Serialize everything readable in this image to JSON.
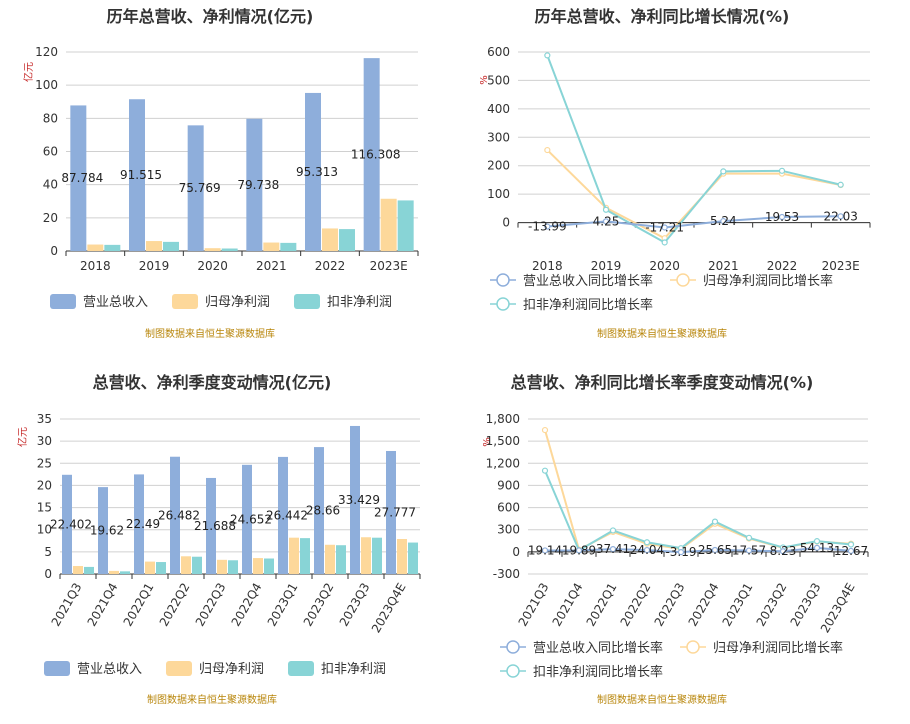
{
  "colors": {
    "revenue": "#8eaedb",
    "net_profit": "#fdd89a",
    "deducted_profit": "#88d4d6"
  },
  "source_text": "制图数据来自恒生聚源数据库",
  "chart_data": [
    {
      "id": "annual-amount",
      "type": "bar",
      "title": "历年总营收、净利情况(亿元)",
      "ylabel": "亿元",
      "ylim": [
        0,
        120
      ],
      "yticks": [
        0,
        20,
        40,
        60,
        80,
        100,
        120
      ],
      "categories": [
        "2018",
        "2019",
        "2020",
        "2021",
        "2022",
        "2023E"
      ],
      "series": [
        {
          "name": "营业总收入",
          "values": [
            87.784,
            91.515,
            75.769,
            79.738,
            95.313,
            116.308
          ],
          "labels": [
            "87.784",
            "91.515",
            "75.769",
            "79.738",
            "95.313",
            "116.308"
          ]
        },
        {
          "name": "归母净利润",
          "values": [
            3.9,
            6.0,
            1.7,
            5.1,
            13.6,
            31.5
          ]
        },
        {
          "name": "扣非净利润",
          "values": [
            3.7,
            5.5,
            1.5,
            4.9,
            13.2,
            30.5
          ]
        }
      ],
      "legend": "bottom"
    },
    {
      "id": "annual-growth",
      "type": "line",
      "title": "历年总营收、净利同比增长情况(%)",
      "ylabel": "%",
      "ylim": [
        -100,
        600
      ],
      "yticks": [
        0,
        100,
        200,
        300,
        400,
        500,
        600
      ],
      "categories": [
        "2018",
        "2019",
        "2020",
        "2021",
        "2022",
        "2023E"
      ],
      "series": [
        {
          "name": "营业总收入同比增长率",
          "values": [
            -13.99,
            4.25,
            -17.21,
            5.24,
            19.53,
            22.03
          ],
          "labels": [
            "-13.99",
            "4.25",
            "-17.21",
            "5.24",
            "19.53",
            "22.03"
          ]
        },
        {
          "name": "归母净利润同比增长率",
          "values": [
            255,
            52,
            -55,
            172,
            172,
            132
          ]
        },
        {
          "name": "扣非净利润同比增长率",
          "values": [
            588,
            45,
            -70,
            180,
            182,
            133
          ]
        }
      ],
      "legend": "bottom"
    },
    {
      "id": "quarter-amount",
      "type": "bar",
      "title": "总营收、净利季度变动情况(亿元)",
      "ylabel": "亿元",
      "ylim": [
        0,
        35
      ],
      "yticks": [
        0,
        5,
        10,
        15,
        20,
        25,
        30,
        35
      ],
      "categories": [
        "2021Q3",
        "2021Q4",
        "2022Q1",
        "2022Q2",
        "2022Q3",
        "2022Q4",
        "2023Q1",
        "2023Q2",
        "2023Q3",
        "2023Q4E"
      ],
      "series": [
        {
          "name": "营业总收入",
          "values": [
            22.402,
            19.62,
            22.49,
            26.482,
            21.688,
            24.652,
            26.442,
            28.66,
            33.429,
            27.777
          ],
          "labels": [
            "22.402",
            "19.62",
            "22.49",
            "26.482",
            "21.688",
            "24.652",
            "26.442",
            "28.66",
            "33.429",
            "27.777"
          ]
        },
        {
          "name": "归母净利润",
          "values": [
            1.8,
            0.7,
            2.8,
            4.0,
            3.2,
            3.6,
            8.2,
            6.6,
            8.3,
            7.9
          ]
        },
        {
          "name": "扣非净利润",
          "values": [
            1.6,
            0.6,
            2.7,
            3.9,
            3.1,
            3.5,
            8.1,
            6.5,
            8.2,
            7.1
          ]
        }
      ],
      "legend": "bottom"
    },
    {
      "id": "quarter-growth",
      "type": "line",
      "title": "总营收、净利同比增长率季度变动情况(%)",
      "ylabel": "%",
      "ylim": [
        -300,
        1800
      ],
      "yticks": [
        -300,
        0,
        300,
        600,
        900,
        1200,
        1500,
        1800
      ],
      "ytick_labels": [
        "-300",
        "0",
        "300",
        "600",
        "900",
        "1,200",
        "1,500",
        "1,800"
      ],
      "categories": [
        "2021Q3",
        "2021Q4",
        "2022Q1",
        "2022Q2",
        "2022Q3",
        "2022Q4",
        "2023Q1",
        "2023Q2",
        "2023Q3",
        "2023Q4E"
      ],
      "series": [
        {
          "name": "营业总收入同比增长率",
          "values": [
            19.14,
            19.89,
            37.41,
            24.04,
            -3.19,
            25.65,
            17.57,
            8.23,
            54.13,
            12.67
          ],
          "labels": [
            "19.14",
            "19.89",
            "37.41",
            "24.04",
            "-3.19",
            "25.65",
            "17.57",
            "8.23",
            "54.13",
            "12.67"
          ]
        },
        {
          "name": "归母净利润同比增长率",
          "values": [
            1650,
            30,
            270,
            110,
            40,
            380,
            180,
            55,
            140,
            110
          ]
        },
        {
          "name": "扣非净利润同比增长率",
          "values": [
            1100,
            20,
            290,
            130,
            50,
            410,
            190,
            60,
            145,
            100
          ]
        }
      ],
      "legend": "bottom"
    }
  ]
}
